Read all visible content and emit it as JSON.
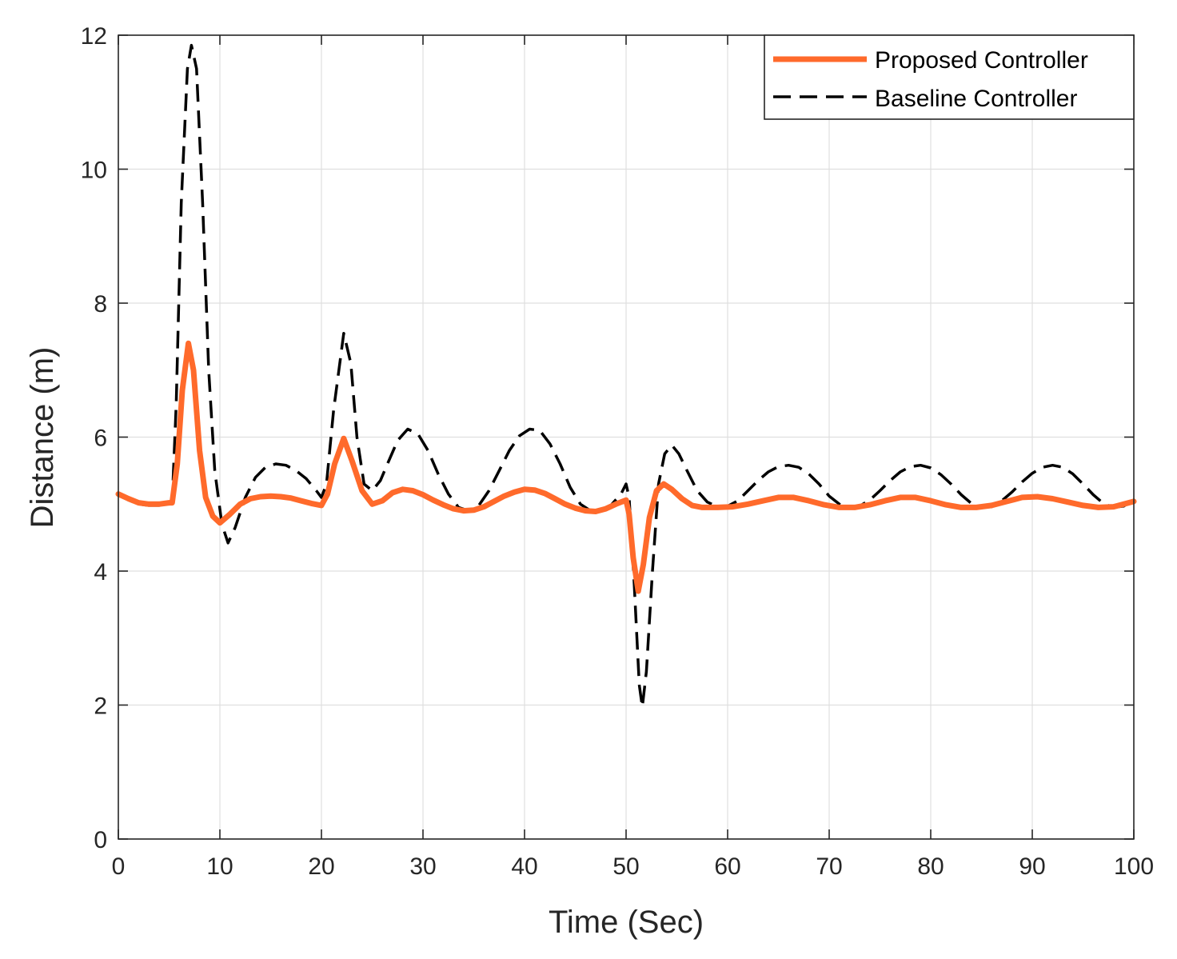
{
  "chart_data": {
    "type": "line",
    "xlabel": "Time (Sec)",
    "ylabel": "Distance (m)",
    "xlim": [
      0,
      100
    ],
    "ylim": [
      0,
      12
    ],
    "xticks": [
      0,
      10,
      20,
      30,
      40,
      50,
      60,
      70,
      80,
      90,
      100
    ],
    "yticks": [
      0,
      2,
      4,
      6,
      8,
      10,
      12
    ],
    "grid": true,
    "legend_position": "top-right",
    "colors": {
      "proposed": "#ff6a2b",
      "baseline": "#000000",
      "grid": "#dfdfdf",
      "axis": "#262626"
    },
    "series": [
      {
        "name": "Proposed Controller",
        "style": "solid",
        "points": [
          [
            0,
            5.15
          ],
          [
            1,
            5.08
          ],
          [
            2,
            5.02
          ],
          [
            3,
            5.0
          ],
          [
            4,
            5.0
          ],
          [
            5,
            5.02
          ],
          [
            5.3,
            5.02
          ],
          [
            5.8,
            5.6
          ],
          [
            6.3,
            6.7
          ],
          [
            6.9,
            7.4
          ],
          [
            7.4,
            7.0
          ],
          [
            8.0,
            5.8
          ],
          [
            8.6,
            5.1
          ],
          [
            9.3,
            4.82
          ],
          [
            10.0,
            4.72
          ],
          [
            11.0,
            4.85
          ],
          [
            12.0,
            5.0
          ],
          [
            13.0,
            5.08
          ],
          [
            14.0,
            5.11
          ],
          [
            15.0,
            5.12
          ],
          [
            16.0,
            5.11
          ],
          [
            17.0,
            5.09
          ],
          [
            18.0,
            5.05
          ],
          [
            19.0,
            5.01
          ],
          [
            20.0,
            4.98
          ],
          [
            20.6,
            5.15
          ],
          [
            21.3,
            5.6
          ],
          [
            22.2,
            5.98
          ],
          [
            23.0,
            5.65
          ],
          [
            24.0,
            5.2
          ],
          [
            25.0,
            5.0
          ],
          [
            26.0,
            5.05
          ],
          [
            27.0,
            5.17
          ],
          [
            28.0,
            5.22
          ],
          [
            29.0,
            5.2
          ],
          [
            30.0,
            5.14
          ],
          [
            31.0,
            5.06
          ],
          [
            32.0,
            4.99
          ],
          [
            33.0,
            4.93
          ],
          [
            34.0,
            4.9
          ],
          [
            35.0,
            4.91
          ],
          [
            36.0,
            4.96
          ],
          [
            37.0,
            5.04
          ],
          [
            38.0,
            5.12
          ],
          [
            39.0,
            5.18
          ],
          [
            40.0,
            5.22
          ],
          [
            41.0,
            5.21
          ],
          [
            42.0,
            5.16
          ],
          [
            43.0,
            5.08
          ],
          [
            44.0,
            5.0
          ],
          [
            45.0,
            4.94
          ],
          [
            46.0,
            4.9
          ],
          [
            47.0,
            4.89
          ],
          [
            48.0,
            4.93
          ],
          [
            49.0,
            5.0
          ],
          [
            50.0,
            5.06
          ],
          [
            50.3,
            4.85
          ],
          [
            50.7,
            4.2
          ],
          [
            51.2,
            3.7
          ],
          [
            51.7,
            4.1
          ],
          [
            52.3,
            4.8
          ],
          [
            53.0,
            5.2
          ],
          [
            53.7,
            5.3
          ],
          [
            54.5,
            5.22
          ],
          [
            55.5,
            5.08
          ],
          [
            56.5,
            4.98
          ],
          [
            57.5,
            4.95
          ],
          [
            59.0,
            4.95
          ],
          [
            60.5,
            4.96
          ],
          [
            62.0,
            5.0
          ],
          [
            63.5,
            5.05
          ],
          [
            65.0,
            5.1
          ],
          [
            66.5,
            5.1
          ],
          [
            68.0,
            5.05
          ],
          [
            69.5,
            4.99
          ],
          [
            71.0,
            4.95
          ],
          [
            72.5,
            4.95
          ],
          [
            74.0,
            4.99
          ],
          [
            75.5,
            5.05
          ],
          [
            77.0,
            5.1
          ],
          [
            78.5,
            5.1
          ],
          [
            80.0,
            5.05
          ],
          [
            81.5,
            4.99
          ],
          [
            83.0,
            4.95
          ],
          [
            84.5,
            4.95
          ],
          [
            86.0,
            4.98
          ],
          [
            87.5,
            5.04
          ],
          [
            89.0,
            5.1
          ],
          [
            90.5,
            5.11
          ],
          [
            92.0,
            5.08
          ],
          [
            93.5,
            5.03
          ],
          [
            95.0,
            4.98
          ],
          [
            96.5,
            4.95
          ],
          [
            98.0,
            4.96
          ],
          [
            99.0,
            5.0
          ],
          [
            100.0,
            5.04
          ]
        ]
      },
      {
        "name": "Baseline Controller",
        "style": "dashed",
        "points": [
          [
            0,
            5.15
          ],
          [
            1,
            5.06
          ],
          [
            2,
            5.0
          ],
          [
            3,
            4.98
          ],
          [
            4,
            4.98
          ],
          [
            5,
            5.0
          ],
          [
            5.3,
            5.02
          ],
          [
            5.7,
            6.5
          ],
          [
            6.2,
            9.5
          ],
          [
            6.8,
            11.5
          ],
          [
            7.2,
            11.85
          ],
          [
            7.7,
            11.5
          ],
          [
            8.3,
            9.5
          ],
          [
            8.9,
            7.0
          ],
          [
            9.5,
            5.5
          ],
          [
            10.2,
            4.7
          ],
          [
            10.8,
            4.42
          ],
          [
            11.5,
            4.65
          ],
          [
            12.5,
            5.1
          ],
          [
            13.5,
            5.4
          ],
          [
            14.5,
            5.55
          ],
          [
            15.5,
            5.6
          ],
          [
            16.5,
            5.58
          ],
          [
            17.5,
            5.5
          ],
          [
            18.5,
            5.38
          ],
          [
            19.5,
            5.2
          ],
          [
            20.0,
            5.1
          ],
          [
            20.5,
            5.3
          ],
          [
            21.2,
            6.4
          ],
          [
            22.2,
            7.55
          ],
          [
            22.9,
            7.1
          ],
          [
            23.5,
            6.0
          ],
          [
            24.2,
            5.3
          ],
          [
            25.0,
            5.2
          ],
          [
            25.8,
            5.35
          ],
          [
            26.5,
            5.6
          ],
          [
            27.5,
            5.95
          ],
          [
            28.5,
            6.12
          ],
          [
            29.5,
            6.05
          ],
          [
            30.5,
            5.8
          ],
          [
            31.5,
            5.45
          ],
          [
            32.5,
            5.15
          ],
          [
            33.5,
            4.95
          ],
          [
            34.5,
            4.9
          ],
          [
            35.5,
            4.98
          ],
          [
            36.5,
            5.2
          ],
          [
            37.5,
            5.5
          ],
          [
            38.5,
            5.8
          ],
          [
            39.5,
            6.02
          ],
          [
            40.5,
            6.12
          ],
          [
            41.5,
            6.1
          ],
          [
            42.5,
            5.9
          ],
          [
            43.5,
            5.6
          ],
          [
            44.5,
            5.25
          ],
          [
            45.5,
            5.0
          ],
          [
            46.5,
            4.9
          ],
          [
            47.5,
            4.9
          ],
          [
            48.5,
            4.98
          ],
          [
            49.5,
            5.15
          ],
          [
            50.0,
            5.3
          ],
          [
            50.3,
            5.1
          ],
          [
            50.8,
            3.8
          ],
          [
            51.3,
            2.3
          ],
          [
            51.6,
            1.97
          ],
          [
            52.0,
            2.5
          ],
          [
            52.6,
            4.0
          ],
          [
            53.2,
            5.3
          ],
          [
            53.8,
            5.75
          ],
          [
            54.5,
            5.88
          ],
          [
            55.2,
            5.75
          ],
          [
            56.0,
            5.5
          ],
          [
            57.0,
            5.2
          ],
          [
            58.0,
            5.03
          ],
          [
            59.0,
            4.96
          ],
          [
            60.0,
            4.97
          ],
          [
            61.0,
            5.05
          ],
          [
            62.0,
            5.2
          ],
          [
            63.0,
            5.35
          ],
          [
            64.0,
            5.48
          ],
          [
            65.0,
            5.56
          ],
          [
            66.0,
            5.58
          ],
          [
            67.0,
            5.55
          ],
          [
            68.0,
            5.45
          ],
          [
            69.0,
            5.3
          ],
          [
            70.0,
            5.12
          ],
          [
            71.0,
            5.0
          ],
          [
            72.0,
            4.95
          ],
          [
            73.0,
            4.97
          ],
          [
            74.0,
            5.06
          ],
          [
            75.0,
            5.2
          ],
          [
            76.0,
            5.35
          ],
          [
            77.0,
            5.48
          ],
          [
            78.0,
            5.56
          ],
          [
            79.0,
            5.58
          ],
          [
            80.0,
            5.54
          ],
          [
            81.0,
            5.44
          ],
          [
            82.0,
            5.3
          ],
          [
            83.0,
            5.14
          ],
          [
            84.0,
            5.01
          ],
          [
            85.0,
            4.95
          ],
          [
            86.0,
            4.96
          ],
          [
            87.0,
            5.05
          ],
          [
            88.0,
            5.18
          ],
          [
            89.0,
            5.33
          ],
          [
            90.0,
            5.46
          ],
          [
            91.0,
            5.55
          ],
          [
            92.0,
            5.58
          ],
          [
            93.0,
            5.55
          ],
          [
            94.0,
            5.45
          ],
          [
            95.0,
            5.3
          ],
          [
            96.0,
            5.14
          ],
          [
            97.0,
            5.01
          ],
          [
            98.0,
            4.95
          ],
          [
            99.0,
            4.97
          ],
          [
            100.0,
            5.05
          ]
        ]
      }
    ]
  }
}
